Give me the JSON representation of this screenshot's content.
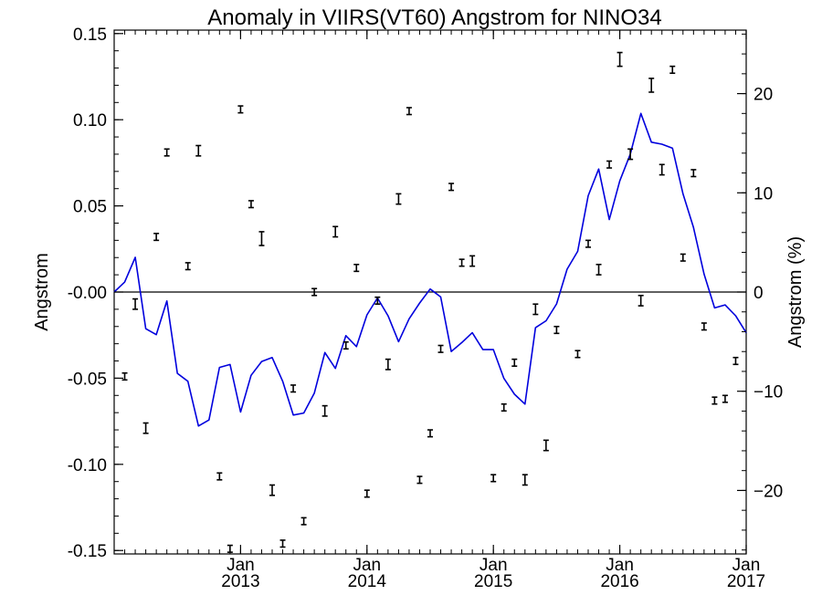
{
  "chart_data": {
    "type": "line",
    "title": "Anomaly in VIIRS(VT60) Angstrom for NINO34",
    "ylabel": "Angstrom",
    "y2label": "Angstrom (%)",
    "xlabel": "",
    "ylim": [
      -0.152,
      0.152
    ],
    "y_ticks": [
      -0.15,
      -0.1,
      -0.05,
      0.0,
      0.05,
      0.1,
      0.15
    ],
    "y_tick_labels": [
      "-0.15",
      "-0.10",
      "-0.05",
      "-0.00",
      "0.05",
      "0.10",
      "0.15"
    ],
    "y2lim": [
      -26.4,
      26.4
    ],
    "y2_ticks": [
      -20,
      -10,
      0,
      10,
      20
    ],
    "y2_tick_labels": [
      "−20",
      "−10",
      "0",
      "10",
      "20"
    ],
    "xlim": [
      "2012-01-01",
      "2017-01-01"
    ],
    "x_ticks": [
      {
        "date": "2013-01-01",
        "line1": "Jan",
        "line2": "2013"
      },
      {
        "date": "2014-01-01",
        "line1": "Jan",
        "line2": "2014"
      },
      {
        "date": "2015-01-01",
        "line1": "Jan",
        "line2": "2015"
      },
      {
        "date": "2016-01-01",
        "line1": "Jan",
        "line2": "2016"
      },
      {
        "date": "2017-01-01",
        "line1": "Jan",
        "line2": "2017"
      }
    ],
    "zero_line": true,
    "grid": false,
    "series": [
      {
        "type": "errorbar",
        "color": "#000000",
        "axis": "left",
        "points": [
          {
            "x": "2012-02",
            "y": -0.049,
            "err": 0.002
          },
          {
            "x": "2012-03",
            "y": -0.007,
            "err": 0.003
          },
          {
            "x": "2012-04",
            "y": -0.079,
            "err": 0.003
          },
          {
            "x": "2012-05",
            "y": 0.032,
            "err": 0.002
          },
          {
            "x": "2012-06",
            "y": 0.081,
            "err": 0.002
          },
          {
            "x": "2012-08",
            "y": 0.015,
            "err": 0.002
          },
          {
            "x": "2012-09",
            "y": 0.082,
            "err": 0.003
          },
          {
            "x": "2012-11",
            "y": -0.107,
            "err": 0.002
          },
          {
            "x": "2012-12",
            "y": -0.149,
            "err": 0.002
          },
          {
            "x": "2013-01",
            "y": 0.106,
            "err": 0.002
          },
          {
            "x": "2013-02",
            "y": 0.051,
            "err": 0.002
          },
          {
            "x": "2013-03",
            "y": 0.031,
            "err": 0.004
          },
          {
            "x": "2013-04",
            "y": -0.115,
            "err": 0.003
          },
          {
            "x": "2013-05",
            "y": -0.146,
            "err": 0.002
          },
          {
            "x": "2013-06",
            "y": -0.056,
            "err": 0.002
          },
          {
            "x": "2013-07",
            "y": -0.133,
            "err": 0.002
          },
          {
            "x": "2013-08",
            "y": 0.0,
            "err": 0.002
          },
          {
            "x": "2013-09",
            "y": -0.069,
            "err": 0.003
          },
          {
            "x": "2013-10",
            "y": 0.035,
            "err": 0.003
          },
          {
            "x": "2013-11",
            "y": -0.031,
            "err": 0.002
          },
          {
            "x": "2013-12",
            "y": 0.014,
            "err": 0.002
          },
          {
            "x": "2014-01",
            "y": -0.117,
            "err": 0.002
          },
          {
            "x": "2014-02",
            "y": -0.005,
            "err": 0.002
          },
          {
            "x": "2014-03",
            "y": -0.042,
            "err": 0.003
          },
          {
            "x": "2014-04",
            "y": 0.054,
            "err": 0.003
          },
          {
            "x": "2014-05",
            "y": 0.105,
            "err": 0.002
          },
          {
            "x": "2014-06",
            "y": -0.109,
            "err": 0.002
          },
          {
            "x": "2014-07",
            "y": -0.082,
            "err": 0.002
          },
          {
            "x": "2014-08",
            "y": -0.033,
            "err": 0.002
          },
          {
            "x": "2014-09",
            "y": 0.061,
            "err": 0.002
          },
          {
            "x": "2014-10",
            "y": 0.017,
            "err": 0.002
          },
          {
            "x": "2014-11",
            "y": 0.018,
            "err": 0.003
          },
          {
            "x": "2015-01",
            "y": -0.108,
            "err": 0.002
          },
          {
            "x": "2015-02",
            "y": -0.067,
            "err": 0.002
          },
          {
            "x": "2015-03",
            "y": -0.041,
            "err": 0.002
          },
          {
            "x": "2015-04",
            "y": -0.109,
            "err": 0.003
          },
          {
            "x": "2015-05",
            "y": -0.01,
            "err": 0.003
          },
          {
            "x": "2015-06",
            "y": -0.089,
            "err": 0.003
          },
          {
            "x": "2015-07",
            "y": -0.022,
            "err": 0.002
          },
          {
            "x": "2015-09",
            "y": -0.036,
            "err": 0.002
          },
          {
            "x": "2015-10",
            "y": 0.028,
            "err": 0.002
          },
          {
            "x": "2015-11",
            "y": 0.013,
            "err": 0.003
          },
          {
            "x": "2015-12",
            "y": 0.074,
            "err": 0.002
          },
          {
            "x": "2016-01",
            "y": 0.135,
            "err": 0.004
          },
          {
            "x": "2016-02",
            "y": 0.08,
            "err": 0.003
          },
          {
            "x": "2016-03",
            "y": -0.005,
            "err": 0.003
          },
          {
            "x": "2016-04",
            "y": 0.12,
            "err": 0.004
          },
          {
            "x": "2016-05",
            "y": 0.071,
            "err": 0.003
          },
          {
            "x": "2016-06",
            "y": 0.129,
            "err": 0.002
          },
          {
            "x": "2016-07",
            "y": 0.02,
            "err": 0.002
          },
          {
            "x": "2016-08",
            "y": 0.069,
            "err": 0.002
          },
          {
            "x": "2016-09",
            "y": -0.02,
            "err": 0.002
          },
          {
            "x": "2016-10",
            "y": -0.063,
            "err": 0.002
          },
          {
            "x": "2016-11",
            "y": -0.062,
            "err": 0.002
          },
          {
            "x": "2016-12",
            "y": -0.04,
            "err": 0.002
          }
        ]
      },
      {
        "type": "line",
        "color": "#0000dd",
        "axis": "right",
        "points": [
          {
            "x": "2012-01",
            "y": 0.0
          },
          {
            "x": "2012-02",
            "y": 1.0
          },
          {
            "x": "2012-03",
            "y": 3.5
          },
          {
            "x": "2012-04",
            "y": -3.7
          },
          {
            "x": "2012-05",
            "y": -4.3
          },
          {
            "x": "2012-06",
            "y": -0.9
          },
          {
            "x": "2012-07",
            "y": -8.2
          },
          {
            "x": "2012-08",
            "y": -9.0
          },
          {
            "x": "2012-09",
            "y": -13.5
          },
          {
            "x": "2012-10",
            "y": -12.9
          },
          {
            "x": "2012-11",
            "y": -7.6
          },
          {
            "x": "2012-12",
            "y": -7.3
          },
          {
            "x": "2013-01",
            "y": -12.1
          },
          {
            "x": "2013-02",
            "y": -8.4
          },
          {
            "x": "2013-03",
            "y": -7.0
          },
          {
            "x": "2013-04",
            "y": -6.6
          },
          {
            "x": "2013-05",
            "y": -9.0
          },
          {
            "x": "2013-06",
            "y": -12.4
          },
          {
            "x": "2013-07",
            "y": -12.2
          },
          {
            "x": "2013-08",
            "y": -10.2
          },
          {
            "x": "2013-09",
            "y": -6.1
          },
          {
            "x": "2013-10",
            "y": -7.7
          },
          {
            "x": "2013-11",
            "y": -4.4
          },
          {
            "x": "2013-12",
            "y": -5.5
          },
          {
            "x": "2014-01",
            "y": -2.3
          },
          {
            "x": "2014-02",
            "y": -0.6
          },
          {
            "x": "2014-03",
            "y": -2.4
          },
          {
            "x": "2014-04",
            "y": -5.0
          },
          {
            "x": "2014-05",
            "y": -2.7
          },
          {
            "x": "2014-06",
            "y": -1.1
          },
          {
            "x": "2014-07",
            "y": 0.3
          },
          {
            "x": "2014-08",
            "y": -0.5
          },
          {
            "x": "2014-09",
            "y": -6.0
          },
          {
            "x": "2014-10",
            "y": -5.1
          },
          {
            "x": "2014-11",
            "y": -4.1
          },
          {
            "x": "2014-12",
            "y": -5.8
          },
          {
            "x": "2015-01",
            "y": -5.8
          },
          {
            "x": "2015-02",
            "y": -8.7
          },
          {
            "x": "2015-03",
            "y": -10.3
          },
          {
            "x": "2015-04",
            "y": -11.3
          },
          {
            "x": "2015-05",
            "y": -3.6
          },
          {
            "x": "2015-06",
            "y": -2.9
          },
          {
            "x": "2015-07",
            "y": -1.2
          },
          {
            "x": "2015-08",
            "y": 2.3
          },
          {
            "x": "2015-09",
            "y": 4.1
          },
          {
            "x": "2015-10",
            "y": 9.7
          },
          {
            "x": "2015-11",
            "y": 12.4
          },
          {
            "x": "2015-12",
            "y": 7.3
          },
          {
            "x": "2016-01",
            "y": 11.2
          },
          {
            "x": "2016-02",
            "y": 13.9
          },
          {
            "x": "2016-03",
            "y": 18.0
          },
          {
            "x": "2016-04",
            "y": 15.1
          },
          {
            "x": "2016-05",
            "y": 14.9
          },
          {
            "x": "2016-06",
            "y": 14.5
          },
          {
            "x": "2016-07",
            "y": 9.9
          },
          {
            "x": "2016-08",
            "y": 6.5
          },
          {
            "x": "2016-09",
            "y": 1.8
          },
          {
            "x": "2016-10",
            "y": -1.6
          },
          {
            "x": "2016-11",
            "y": -1.3
          },
          {
            "x": "2016-12",
            "y": -2.4
          },
          {
            "x": "2017-01",
            "y": -4.1
          }
        ]
      }
    ]
  }
}
